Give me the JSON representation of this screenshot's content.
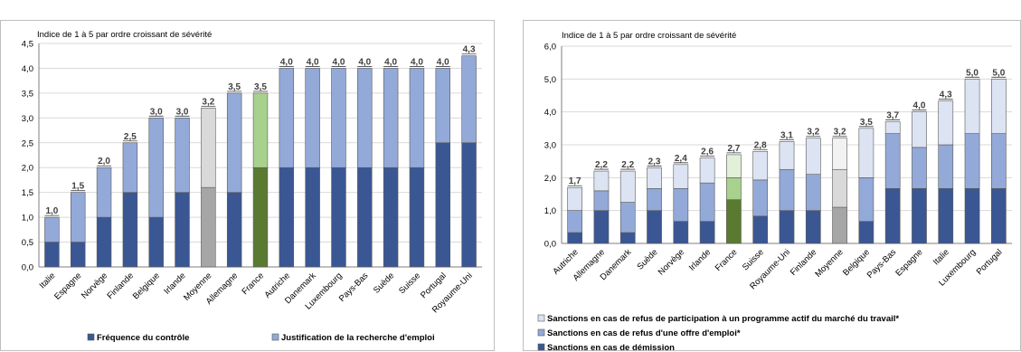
{
  "chart_data": [
    {
      "type": "bar",
      "stacked": true,
      "subtitle": "Indice de 1 à 5 par ordre croissant de sévérité",
      "ylim": [
        0,
        4.5
      ],
      "yticks": [
        "0,0",
        "0,5",
        "1,0",
        "1,5",
        "2,0",
        "2,5",
        "3,0",
        "3,5",
        "4,0",
        "4,5"
      ],
      "categories": [
        "Italie",
        "Espagne",
        "Norvège",
        "Finlande",
        "Belgique",
        "Irlande",
        "Moyenne",
        "Allemagne",
        "France",
        "Autriche",
        "Danemark",
        "Luxembourg",
        "Pays-Bas",
        "Suède",
        "Suisse",
        "Portugal",
        "Royaume-Uni"
      ],
      "series": [
        {
          "name": "Fréquence du contrôle",
          "values": [
            0.5,
            0.5,
            1.0,
            1.5,
            1.0,
            1.5,
            1.6,
            1.5,
            2.0,
            2.0,
            2.0,
            2.0,
            2.0,
            2.0,
            2.0,
            2.5,
            2.5
          ]
        },
        {
          "name": "Justification de la recherche d'emploi",
          "values": [
            0.5,
            1.0,
            1.0,
            1.0,
            2.0,
            1.5,
            1.6,
            2.0,
            1.5,
            2.0,
            2.0,
            2.0,
            2.0,
            2.0,
            2.0,
            1.5,
            1.75
          ]
        }
      ],
      "totals": [
        "1,0",
        "1,5",
        "2,0",
        "2,5",
        "3,0",
        "3,0",
        "3,2",
        "3,5",
        "3,5",
        "4,0",
        "4,0",
        "4,0",
        "4,0",
        "4,0",
        "4,0",
        "4,0",
        "4,3"
      ],
      "colors": {
        "s0": "#3a5794",
        "s1": "#93a9d8",
        "moyenne_s0": "#a6a6a6",
        "moyenne_s1": "#d9d9d9",
        "france_s0": "#5a7a32",
        "france_s1": "#a9d18e"
      },
      "legend_position": "bottom"
    },
    {
      "type": "bar",
      "stacked": true,
      "subtitle": "Indice de 1 à 5 par ordre croissant de sévérité",
      "ylim": [
        0,
        6
      ],
      "yticks": [
        "0,0",
        "1,0",
        "2,0",
        "3,0",
        "4,0",
        "5,0",
        "6,0"
      ],
      "categories": [
        "Autriche",
        "Allemagne",
        "Danemark",
        "Suède",
        "Norvège",
        "Irlande",
        "France",
        "Suisse",
        "Royaume-Uni",
        "Finlande",
        "Moyenne",
        "Belgique",
        "Pays-Bas",
        "Espagne",
        "Italie",
        "Luxembourg",
        "Portugal"
      ],
      "series": [
        {
          "name": "Sanctions en cas de démission",
          "values": [
            0.33,
            1.0,
            0.33,
            1.0,
            0.67,
            0.67,
            1.33,
            0.83,
            1.0,
            1.0,
            1.1,
            0.67,
            1.67,
            1.67,
            1.67,
            1.67,
            1.67
          ]
        },
        {
          "name": "Sanctions en cas de refus d'une offre d'emploi*",
          "values": [
            0.67,
            0.6,
            0.92,
            0.67,
            1.0,
            1.17,
            0.67,
            1.1,
            1.25,
            1.1,
            1.15,
            1.33,
            1.67,
            1.25,
            1.33,
            1.67,
            1.67
          ]
        },
        {
          "name": "Sanctions en cas de refus de participation à un programme actif du marché du travail*",
          "values": [
            0.7,
            0.6,
            0.95,
            0.63,
            0.73,
            0.76,
            0.7,
            0.87,
            0.85,
            1.1,
            0.95,
            1.5,
            0.36,
            1.08,
            1.33,
            1.66,
            1.66
          ]
        }
      ],
      "totals": [
        "1,7",
        "2,2",
        "2,2",
        "2,3",
        "2,4",
        "2,6",
        "2,7",
        "2,8",
        "3,1",
        "3,2",
        "3,2",
        "3,5",
        "3,7",
        "4,0",
        "4,3",
        "5,0",
        "5,0"
      ],
      "colors": {
        "s0": "#3a5794",
        "s1": "#93a9d8",
        "s2": "#dce3f2",
        "moyenne_s0": "#a6a6a6",
        "moyenne_s1": "#d9d9d9",
        "moyenne_s2": "#f2f2f2",
        "france_s0": "#5a7a32",
        "france_s1": "#a9d18e",
        "france_s2": "#e2efd9"
      },
      "legend_position": "bottom"
    }
  ]
}
